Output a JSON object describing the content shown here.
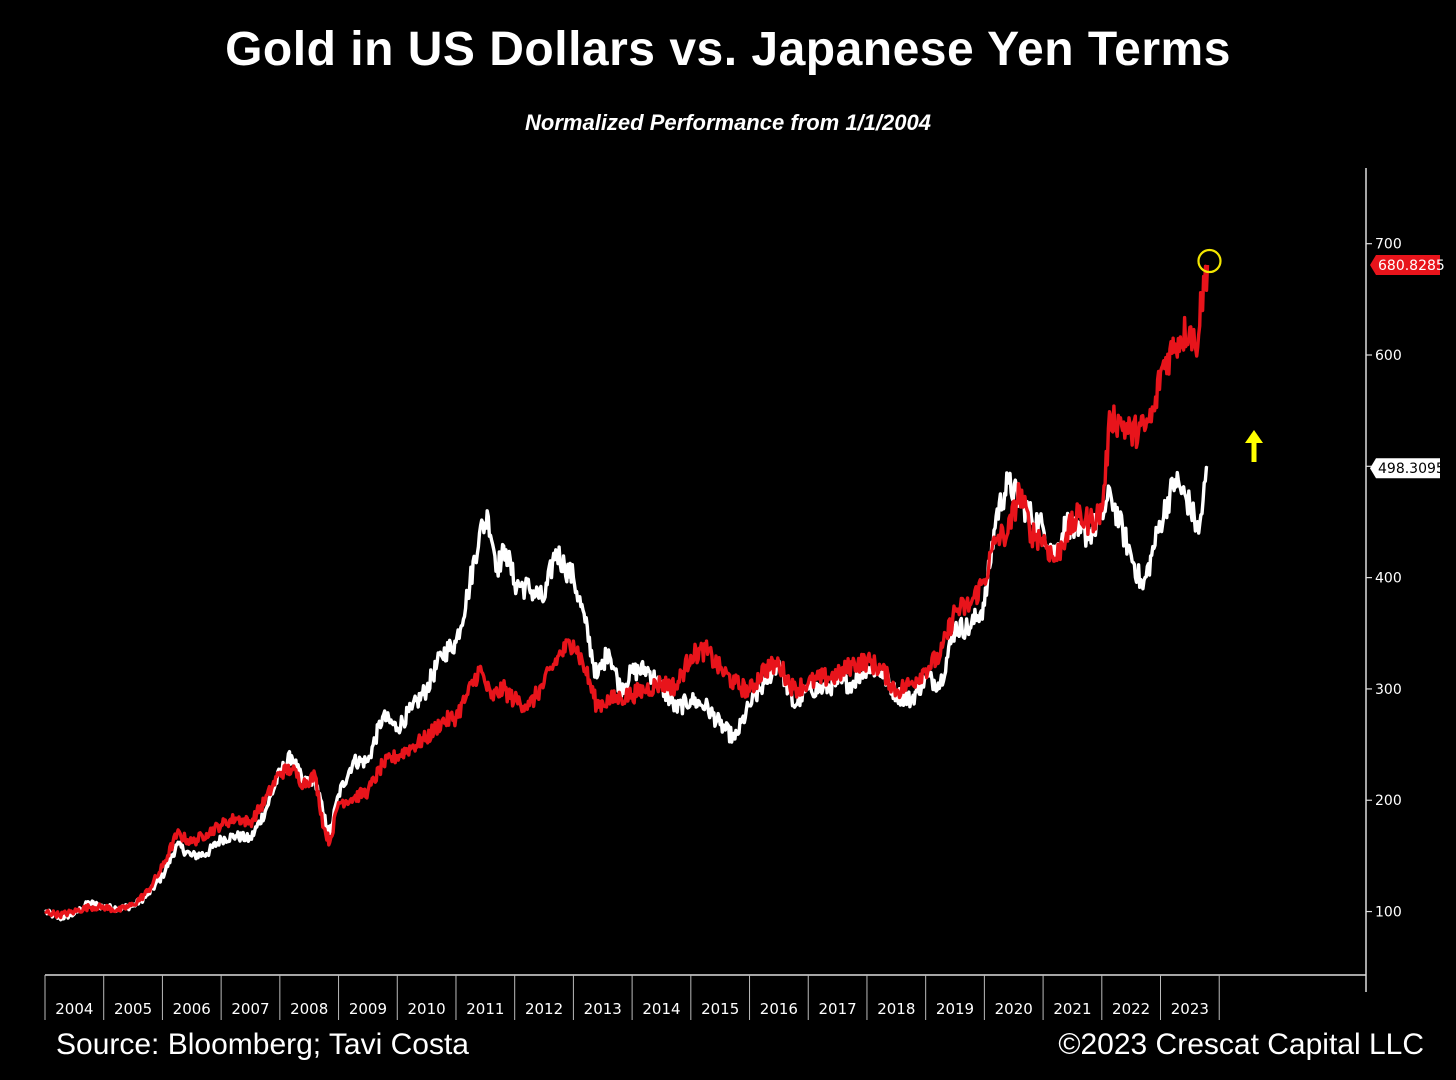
{
  "chart_data": {
    "type": "line",
    "title": "Gold in US Dollars vs. Japanese Yen Terms",
    "subtitle": "Normalized Performance  from 1/1/2004",
    "x_tick_labels": [
      "2004",
      "2005",
      "2006",
      "2007",
      "2008",
      "2009",
      "2010",
      "2011",
      "2012",
      "2013",
      "2014",
      "2015",
      "2016",
      "2017",
      "2018",
      "2019",
      "2020",
      "2021",
      "2022",
      "2023"
    ],
    "y_ticks": [
      100,
      200,
      300,
      400,
      500,
      600,
      700
    ],
    "y_tick_labels": [
      "100",
      "200",
      "300",
      "400",
      "",
      "600",
      "700"
    ],
    "xlim": [
      2004.0,
      2026.5
    ],
    "ylim": [
      43,
      768
    ],
    "grid": false,
    "series": [
      {
        "color": "#e8141b",
        "last_value_label": "680.8285",
        "points": [
          [
            2004.0,
            100
          ],
          [
            2004.25,
            97
          ],
          [
            2004.5,
            100
          ],
          [
            2004.75,
            104
          ],
          [
            2005.0,
            104
          ],
          [
            2005.25,
            101
          ],
          [
            2005.5,
            106
          ],
          [
            2005.75,
            118
          ],
          [
            2006.0,
            140
          ],
          [
            2006.25,
            170
          ],
          [
            2006.5,
            162
          ],
          [
            2006.75,
            170
          ],
          [
            2007.0,
            178
          ],
          [
            2007.25,
            184
          ],
          [
            2007.5,
            180
          ],
          [
            2007.75,
            200
          ],
          [
            2008.0,
            225
          ],
          [
            2008.2,
            228
          ],
          [
            2008.4,
            215
          ],
          [
            2008.6,
            222
          ],
          [
            2008.75,
            175
          ],
          [
            2008.85,
            162
          ],
          [
            2009.0,
            198
          ],
          [
            2009.25,
            202
          ],
          [
            2009.5,
            208
          ],
          [
            2009.75,
            232
          ],
          [
            2010.0,
            240
          ],
          [
            2010.25,
            248
          ],
          [
            2010.5,
            256
          ],
          [
            2010.75,
            270
          ],
          [
            2011.0,
            275
          ],
          [
            2011.2,
            295
          ],
          [
            2011.4,
            318
          ],
          [
            2011.6,
            292
          ],
          [
            2011.8,
            300
          ],
          [
            2012.0,
            290
          ],
          [
            2012.25,
            285
          ],
          [
            2012.5,
            305
          ],
          [
            2012.75,
            330
          ],
          [
            2013.0,
            343
          ],
          [
            2013.2,
            318
          ],
          [
            2013.4,
            285
          ],
          [
            2013.6,
            290
          ],
          [
            2013.8,
            292
          ],
          [
            2014.0,
            295
          ],
          [
            2014.25,
            300
          ],
          [
            2014.5,
            305
          ],
          [
            2014.75,
            302
          ],
          [
            2015.0,
            330
          ],
          [
            2015.25,
            335
          ],
          [
            2015.5,
            318
          ],
          [
            2015.75,
            305
          ],
          [
            2016.0,
            298
          ],
          [
            2016.25,
            318
          ],
          [
            2016.5,
            322
          ],
          [
            2016.75,
            300
          ],
          [
            2017.0,
            305
          ],
          [
            2017.25,
            310
          ],
          [
            2017.5,
            312
          ],
          [
            2017.75,
            322
          ],
          [
            2018.0,
            325
          ],
          [
            2018.25,
            318
          ],
          [
            2018.5,
            298
          ],
          [
            2018.75,
            305
          ],
          [
            2019.0,
            318
          ],
          [
            2019.25,
            330
          ],
          [
            2019.5,
            370
          ],
          [
            2019.75,
            375
          ],
          [
            2020.0,
            398
          ],
          [
            2020.2,
            435
          ],
          [
            2020.4,
            440
          ],
          [
            2020.6,
            478
          ],
          [
            2020.8,
            440
          ],
          [
            2021.0,
            435
          ],
          [
            2021.2,
            415
          ],
          [
            2021.4,
            440
          ],
          [
            2021.6,
            455
          ],
          [
            2021.8,
            450
          ],
          [
            2022.0,
            460
          ],
          [
            2022.15,
            545
          ],
          [
            2022.3,
            540
          ],
          [
            2022.5,
            530
          ],
          [
            2022.75,
            535
          ],
          [
            2022.9,
            550
          ],
          [
            2023.0,
            585
          ],
          [
            2023.25,
            610
          ],
          [
            2023.5,
            625
          ],
          [
            2023.6,
            605
          ],
          [
            2023.7,
            650
          ],
          [
            2023.8,
            680.8285
          ]
        ]
      },
      {
        "color": "#ffffff",
        "last_value_label": "498.3095",
        "points": [
          [
            2004.0,
            100
          ],
          [
            2004.25,
            94
          ],
          [
            2004.5,
            98
          ],
          [
            2004.75,
            108
          ],
          [
            2005.0,
            104
          ],
          [
            2005.25,
            103
          ],
          [
            2005.5,
            105
          ],
          [
            2005.75,
            115
          ],
          [
            2006.0,
            132
          ],
          [
            2006.25,
            160
          ],
          [
            2006.5,
            150
          ],
          [
            2006.75,
            152
          ],
          [
            2007.0,
            165
          ],
          [
            2007.25,
            168
          ],
          [
            2007.5,
            165
          ],
          [
            2007.75,
            190
          ],
          [
            2008.0,
            225
          ],
          [
            2008.2,
            240
          ],
          [
            2008.4,
            215
          ],
          [
            2008.6,
            220
          ],
          [
            2008.75,
            185
          ],
          [
            2008.85,
            170
          ],
          [
            2009.0,
            205
          ],
          [
            2009.25,
            235
          ],
          [
            2009.5,
            235
          ],
          [
            2009.75,
            275
          ],
          [
            2010.0,
            265
          ],
          [
            2010.25,
            282
          ],
          [
            2010.5,
            300
          ],
          [
            2010.75,
            330
          ],
          [
            2011.0,
            342
          ],
          [
            2011.2,
            385
          ],
          [
            2011.4,
            440
          ],
          [
            2011.55,
            455
          ],
          [
            2011.7,
            410
          ],
          [
            2011.85,
            425
          ],
          [
            2012.0,
            395
          ],
          [
            2012.25,
            390
          ],
          [
            2012.5,
            380
          ],
          [
            2012.7,
            425
          ],
          [
            2012.85,
            410
          ],
          [
            2013.0,
            400
          ],
          [
            2013.2,
            360
          ],
          [
            2013.4,
            310
          ],
          [
            2013.6,
            335
          ],
          [
            2013.8,
            300
          ],
          [
            2014.0,
            315
          ],
          [
            2014.25,
            318
          ],
          [
            2014.5,
            302
          ],
          [
            2014.75,
            282
          ],
          [
            2015.0,
            290
          ],
          [
            2015.25,
            285
          ],
          [
            2015.5,
            268
          ],
          [
            2015.75,
            255
          ],
          [
            2016.0,
            285
          ],
          [
            2016.25,
            305
          ],
          [
            2016.5,
            325
          ],
          [
            2016.75,
            285
          ],
          [
            2017.0,
            300
          ],
          [
            2017.25,
            300
          ],
          [
            2017.5,
            305
          ],
          [
            2017.75,
            305
          ],
          [
            2018.0,
            320
          ],
          [
            2018.25,
            315
          ],
          [
            2018.5,
            295
          ],
          [
            2018.75,
            290
          ],
          [
            2019.0,
            310
          ],
          [
            2019.25,
            305
          ],
          [
            2019.5,
            355
          ],
          [
            2019.75,
            355
          ],
          [
            2020.0,
            375
          ],
          [
            2020.2,
            455
          ],
          [
            2020.4,
            485
          ],
          [
            2020.6,
            470
          ],
          [
            2020.8,
            455
          ],
          [
            2021.0,
            445
          ],
          [
            2021.2,
            420
          ],
          [
            2021.4,
            450
          ],
          [
            2021.6,
            438
          ],
          [
            2021.8,
            440
          ],
          [
            2022.0,
            455
          ],
          [
            2022.15,
            475
          ],
          [
            2022.3,
            450
          ],
          [
            2022.5,
            420
          ],
          [
            2022.7,
            390
          ],
          [
            2022.85,
            420
          ],
          [
            2023.0,
            450
          ],
          [
            2023.25,
            488
          ],
          [
            2023.5,
            465
          ],
          [
            2023.65,
            440
          ],
          [
            2023.8,
            498.3095
          ]
        ]
      }
    ]
  },
  "footer": {
    "source": "Source: Bloomberg; Tavi Costa",
    "copyright": "©2023 Crescat Capital LLC"
  }
}
